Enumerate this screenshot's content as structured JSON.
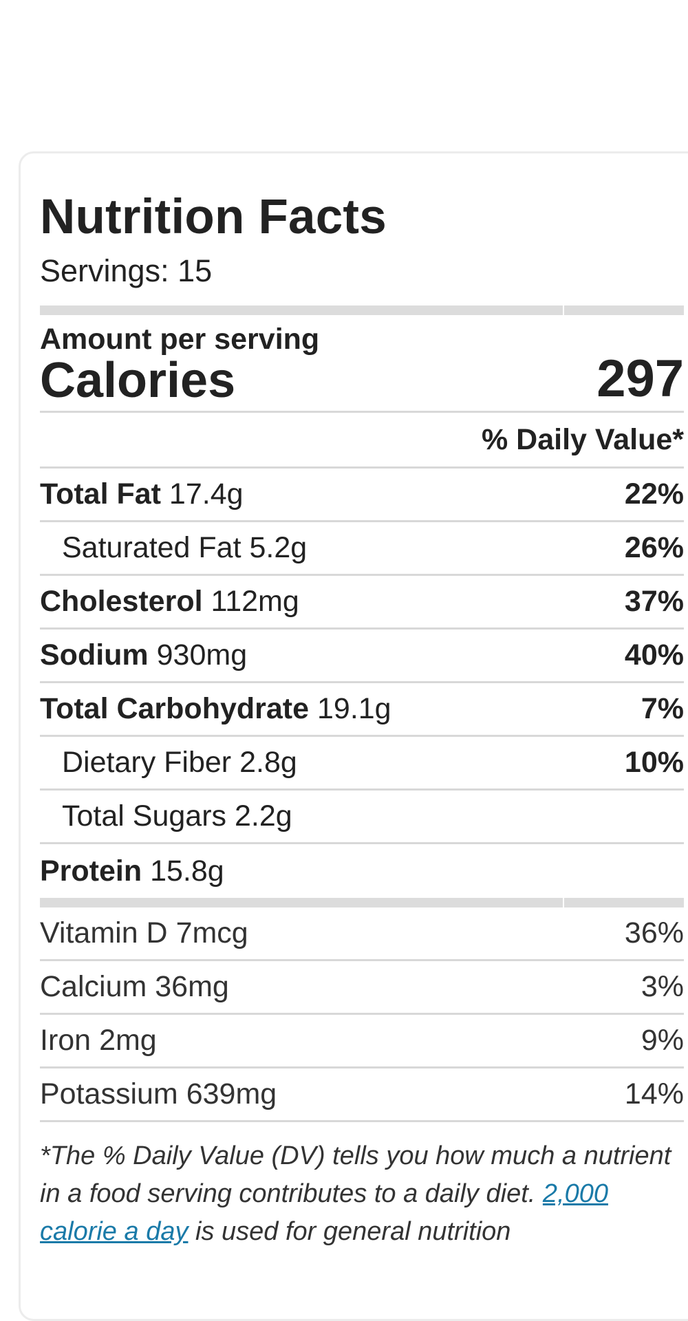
{
  "label": {
    "title": "Nutrition Facts",
    "servings": "Servings: 15",
    "amount_per_serving": "Amount per serving",
    "calories_label": "Calories",
    "calories_value": "297",
    "daily_value_header": "% Daily Value*"
  },
  "nutrients": [
    {
      "name": "Total Fat",
      "amount": "17.4g",
      "pct": "22%",
      "bold": true
    },
    {
      "name": "Saturated Fat",
      "amount": "5.2g",
      "pct": "26%",
      "bold": false
    },
    {
      "name": "Cholesterol",
      "amount": "112mg",
      "pct": "37%",
      "bold": true
    },
    {
      "name": "Sodium",
      "amount": "930mg",
      "pct": "40%",
      "bold": true
    },
    {
      "name": "Total Carbohydrate",
      "amount": "19.1g",
      "pct": "7%",
      "bold": true
    },
    {
      "name": "Dietary Fiber",
      "amount": "2.8g",
      "pct": "10%",
      "bold": false
    },
    {
      "name": "Total Sugars",
      "amount": "2.2g",
      "pct": "",
      "bold": false
    },
    {
      "name": "Protein",
      "amount": "15.8g",
      "pct": "",
      "bold": true
    }
  ],
  "vitamins": [
    {
      "name": "Vitamin D",
      "amount": "7mcg",
      "pct": "36%"
    },
    {
      "name": "Calcium",
      "amount": "36mg",
      "pct": "3%"
    },
    {
      "name": "Iron",
      "amount": "2mg",
      "pct": "9%"
    },
    {
      "name": "Potassium",
      "amount": "639mg",
      "pct": "14%"
    }
  ],
  "footnote": {
    "text_before": "*The % Daily Value (DV) tells you how much a nutrient in a food serving contributes to a daily diet.",
    "link_text": "2,000 calorie a day",
    "text_after": "is used for general nutrition"
  },
  "colors": {
    "link": "#1a7aa8",
    "divider": "#d8d8d8",
    "thick_bar": "#dcdcdc"
  }
}
